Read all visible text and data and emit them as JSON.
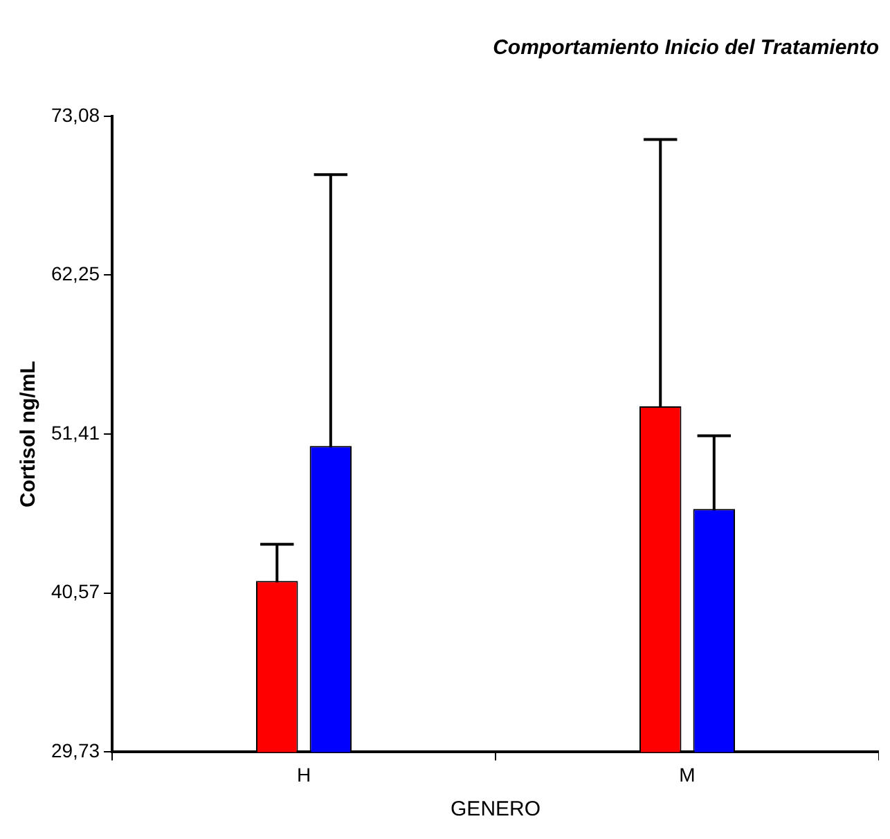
{
  "chart_data": {
    "type": "bar",
    "title": "Comportamiento Inicio del Tratamiento",
    "xlabel": "GENERO",
    "ylabel": "Cortisol ng/mL",
    "categories": [
      "H",
      "M"
    ],
    "series": [
      {
        "color": "#ff0000",
        "values": [
          41.4,
          53.3
        ],
        "errors": [
          2.5,
          18.2
        ]
      },
      {
        "color": "#0000ff",
        "values": [
          50.6,
          46.3
        ],
        "errors": [
          18.5,
          5.0
        ]
      }
    ],
    "ylim": [
      29.73,
      73.08
    ],
    "yticks": [
      {
        "value": 29.73,
        "label": "29,73"
      },
      {
        "value": 40.57,
        "label": "40,57"
      },
      {
        "value": 51.41,
        "label": "51,41"
      },
      {
        "value": 62.25,
        "label": "62,25"
      },
      {
        "value": 73.08,
        "label": "73,08"
      }
    ],
    "grid": false,
    "legend": false
  }
}
